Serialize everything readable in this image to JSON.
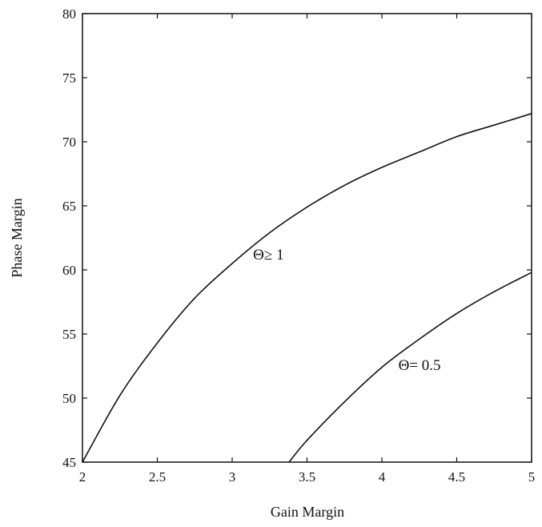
{
  "chart_data": {
    "type": "line",
    "title": "",
    "xlabel": "Gain Margin",
    "ylabel": "Phase Margin",
    "xlim": [
      2,
      5
    ],
    "ylim": [
      45,
      80
    ],
    "grid": false,
    "xticks": [
      2,
      2.5,
      3,
      3.5,
      4,
      4.5,
      5
    ],
    "xtick_labels": [
      "2",
      "2.5",
      "3",
      "3.5",
      "4",
      "4.5",
      "5"
    ],
    "yticks": [
      45,
      50,
      55,
      60,
      65,
      70,
      75,
      80
    ],
    "ytick_labels": [
      "45",
      "50",
      "55",
      "60",
      "65",
      "70",
      "75",
      "80"
    ],
    "series": [
      {
        "name": "Θ≥ 1",
        "x": [
          2.0,
          2.25,
          2.5,
          2.75,
          3.0,
          3.25,
          3.5,
          3.75,
          4.0,
          4.25,
          4.5,
          4.75,
          5.0
        ],
        "y": [
          45.0,
          50.2,
          54.3,
          57.8,
          60.5,
          62.9,
          64.9,
          66.6,
          68.0,
          69.2,
          70.4,
          71.3,
          72.2
        ]
      },
      {
        "name": "Θ= 0.5",
        "x": [
          3.38,
          3.5,
          3.75,
          4.0,
          4.25,
          4.5,
          4.75,
          5.0
        ],
        "y": [
          45.0,
          46.7,
          49.7,
          52.4,
          54.6,
          56.6,
          58.3,
          59.8
        ]
      }
    ],
    "annotations": [
      {
        "text": "Θ≥ 1",
        "x": 3.14,
        "y": 60.8
      },
      {
        "text": "Θ= 0.5",
        "x": 4.11,
        "y": 52.2
      }
    ]
  }
}
